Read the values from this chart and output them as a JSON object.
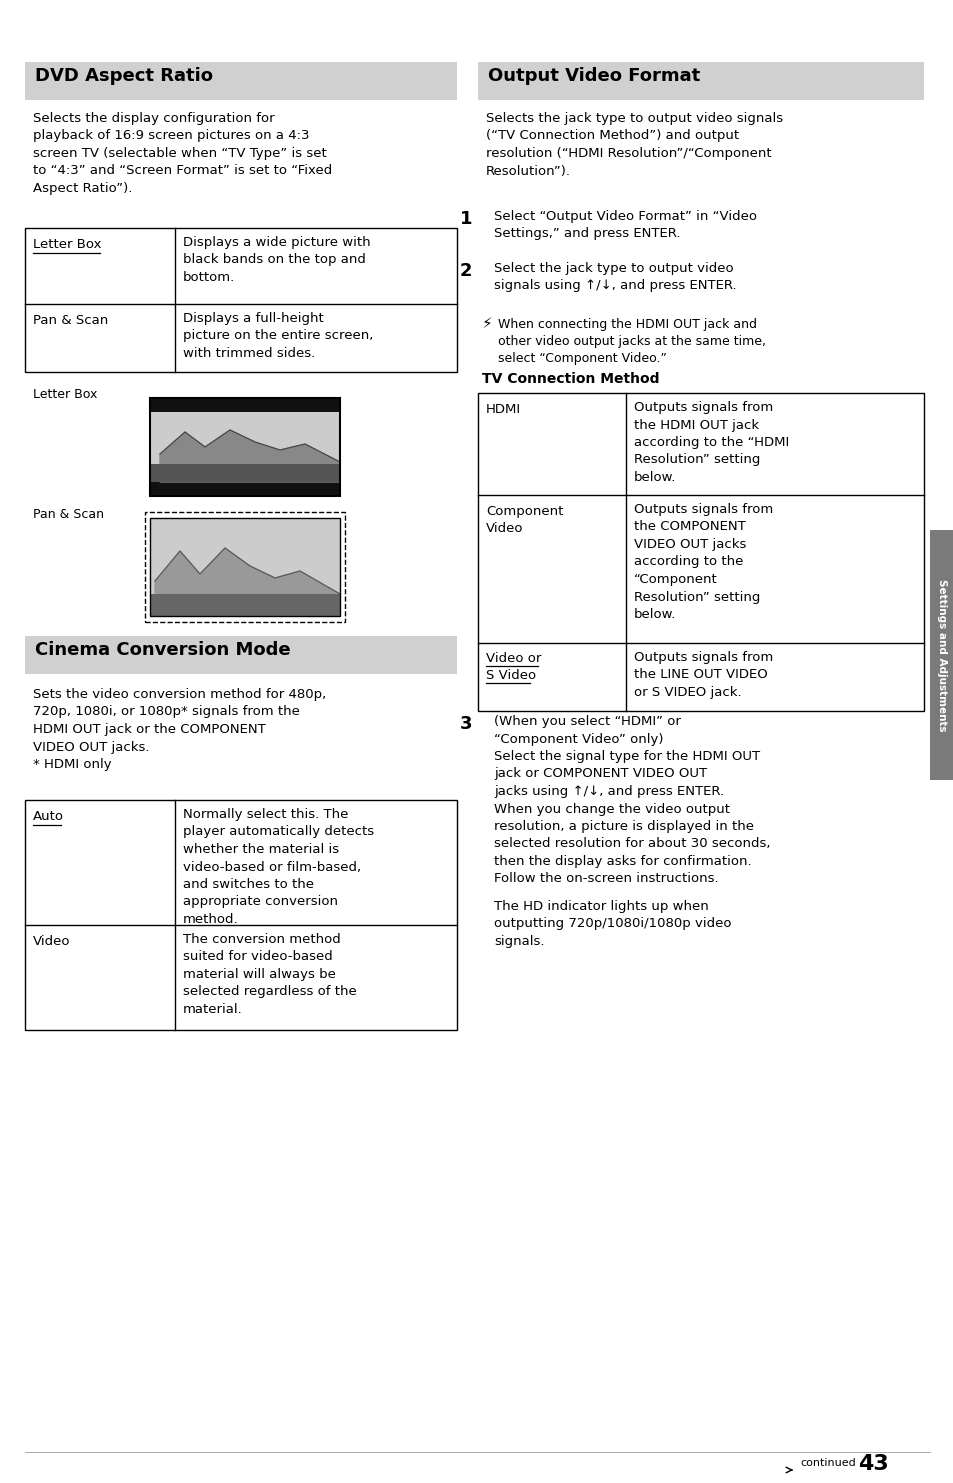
{
  "page_bg": "#ffffff",
  "header_bg": "#d0d0d0",
  "sidebar_bg": "#7a7a7a",
  "sidebar_text": "Settings and Adjustments",
  "section1_title": "DVD Aspect Ratio",
  "section1_body": "Selects the display configuration for\nplayback of 16:9 screen pictures on a 4:3\nscreen TV (selectable when “TV Type” is set\nto “4:3” and “Screen Format” is set to “Fixed\nAspect Ratio”).",
  "dvd_table": [
    [
      "Letter Box",
      "Displays a wide picture with\nblack bands on the top and\nbottom."
    ],
    [
      "Pan & Scan",
      "Displays a full-height\npicture on the entire screen,\nwith trimmed sides."
    ]
  ],
  "section2_title": "Cinema Conversion Mode",
  "section2_body": "Sets the video conversion method for 480p,\n720p, 1080i, or 1080p* signals from the\nHDMI OUT jack or the COMPONENT\nVIDEO OUT jacks.\n* HDMI only",
  "cinema_table": [
    [
      "Auto",
      "Normally select this. The\nplayer automatically detects\nwhether the material is\nvideo-based or film-based,\nand switches to the\nappropriate conversion\nmethod."
    ],
    [
      "Video",
      "The conversion method\nsuited for video-based\nmaterial will always be\nselected regardless of the\nmaterial."
    ]
  ],
  "section3_title": "Output Video Format",
  "section3_body": "Selects the jack type to output video signals\n(“TV Connection Method”) and output\nresolution (“HDMI Resolution”/“Component\nResolution”).",
  "step1": "Select “Output Video Format” in “Video\nSettings,” and press ENTER.",
  "step2": "Select the jack type to output video\nsignals using ↑/↓, and press ENTER.",
  "note_text": "When connecting the HDMI OUT jack and\nother video output jacks at the same time,\nselect “Component Video.”",
  "tv_table_title": "TV Connection Method",
  "tv_table": [
    [
      "HDMI",
      "Outputs signals from\nthe HDMI OUT jack\naccording to the “HDMI\nResolution” setting\nbelow."
    ],
    [
      "Component\nVideo",
      "Outputs signals from\nthe COMPONENT\nVIDEO OUT jacks\naccording to the\n“Component\nResolution” setting\nbelow."
    ],
    [
      "Video or\nS Video",
      "Outputs signals from\nthe LINE OUT VIDEO\nor S VIDEO jack."
    ]
  ],
  "step3_text": "(When you select “HDMI” or\n“Component Video” only)\nSelect the signal type for the HDMI OUT\njack or COMPONENT VIDEO OUT\njacks using ↑/↓, and press ENTER.\nWhen you change the video output\nresolution, a picture is displayed in the\nselected resolution for about 30 seconds,\nthen the display asks for confirmation.\nFollow the on-screen instructions.",
  "step3_extra": "The HD indicator lights up when\noutputting 720p/1080i/1080p video\nsignals.",
  "footer_text": "→continued  43"
}
